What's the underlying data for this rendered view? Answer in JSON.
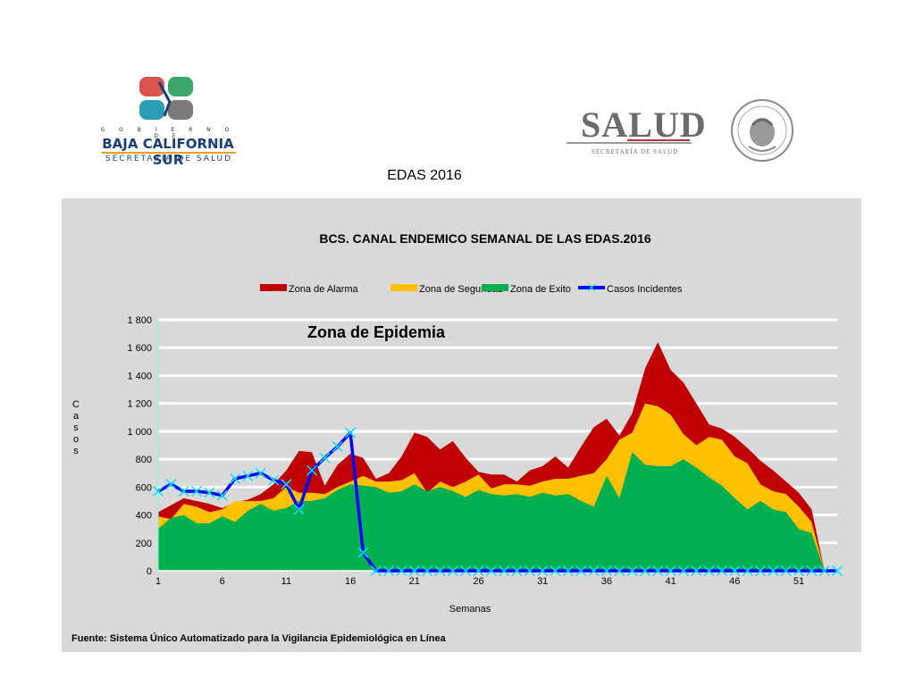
{
  "logos": {
    "bcs": {
      "small": "G O B I E R N O D E",
      "name": "BAJA CALIFORNIA SUR",
      "sub": "SECRETARÍA DE SALUD"
    },
    "salud": {
      "word": "SALUD",
      "sub": "SECRETARÍA DE SALUD",
      "seal_text": "ESTADOS UNIDOS MEXICANOS"
    }
  },
  "page_title": "EDAS 2016",
  "chart_data": {
    "type": "area",
    "title": "BCS. CANAL ENDEMICO SEMANAL DE LAS EDAS.2016",
    "annotation": "Zona de Epidemia",
    "xlabel": "Semanas",
    "ylabel": "Casos",
    "ylim": [
      0,
      1800
    ],
    "yticks": [
      0,
      200,
      400,
      600,
      800,
      1000,
      1200,
      1400,
      1600,
      1800
    ],
    "xticks": [
      1,
      6,
      11,
      16,
      21,
      26,
      31,
      36,
      41,
      46,
      51
    ],
    "x": [
      1,
      2,
      3,
      4,
      5,
      6,
      7,
      8,
      9,
      10,
      11,
      12,
      13,
      14,
      15,
      16,
      17,
      18,
      19,
      20,
      21,
      22,
      23,
      24,
      25,
      26,
      27,
      28,
      29,
      30,
      31,
      32,
      33,
      34,
      35,
      36,
      37,
      38,
      39,
      40,
      41,
      42,
      43,
      44,
      45,
      46,
      47,
      48,
      49,
      50,
      51,
      52,
      53,
      54
    ],
    "grid": true,
    "legend_position": "top",
    "series": [
      {
        "name": "Zona de Alarma",
        "color": "#c00000",
        "values": [
          420,
          470,
          520,
          500,
          480,
          450,
          490,
          510,
          550,
          620,
          720,
          860,
          850,
          610,
          760,
          840,
          810,
          660,
          700,
          820,
          990,
          960,
          870,
          930,
          810,
          710,
          690,
          690,
          640,
          720,
          750,
          820,
          740,
          890,
          1030,
          1090,
          970,
          1130,
          1450,
          1640,
          1440,
          1350,
          1200,
          1050,
          1020,
          960,
          880,
          790,
          720,
          640,
          560,
          440,
          0,
          0
        ]
      },
      {
        "name": "Zona de Seguridad",
        "color": "#ffc000",
        "values": [
          390,
          370,
          480,
          460,
          420,
          440,
          500,
          500,
          500,
          520,
          600,
          560,
          560,
          550,
          600,
          640,
          680,
          640,
          640,
          650,
          700,
          560,
          640,
          600,
          640,
          690,
          590,
          620,
          620,
          610,
          640,
          660,
          660,
          680,
          700,
          800,
          940,
          990,
          1200,
          1180,
          1120,
          980,
          900,
          960,
          940,
          820,
          770,
          620,
          570,
          550,
          460,
          350,
          0,
          0
        ]
      },
      {
        "name": "Zona de Exito",
        "color": "#00b050",
        "values": [
          300,
          380,
          400,
          340,
          340,
          390,
          350,
          430,
          480,
          430,
          450,
          500,
          500,
          520,
          580,
          620,
          610,
          600,
          560,
          570,
          620,
          570,
          600,
          570,
          530,
          580,
          550,
          540,
          550,
          530,
          560,
          540,
          550,
          500,
          460,
          680,
          520,
          850,
          760,
          750,
          750,
          800,
          740,
          670,
          610,
          520,
          440,
          500,
          440,
          420,
          300,
          270,
          0,
          0
        ]
      },
      {
        "name": "Casos Incidentes",
        "color": "#0000ff",
        "marker_color": "#00e5ff",
        "values": [
          570,
          620,
          570,
          570,
          560,
          540,
          660,
          680,
          700,
          650,
          620,
          440,
          720,
          810,
          890,
          990,
          130,
          0,
          0,
          0,
          0,
          0,
          0,
          0,
          0,
          0,
          0,
          0,
          0,
          0,
          0,
          0,
          0,
          0,
          0,
          0,
          0,
          0,
          0,
          0,
          0,
          0,
          0,
          0,
          0,
          0,
          0,
          0,
          0,
          0,
          0,
          0,
          0,
          0
        ]
      }
    ]
  },
  "source": "Fuente: Sistema Único Automatizado para la Vigilancia Epidemiológica en Línea"
}
